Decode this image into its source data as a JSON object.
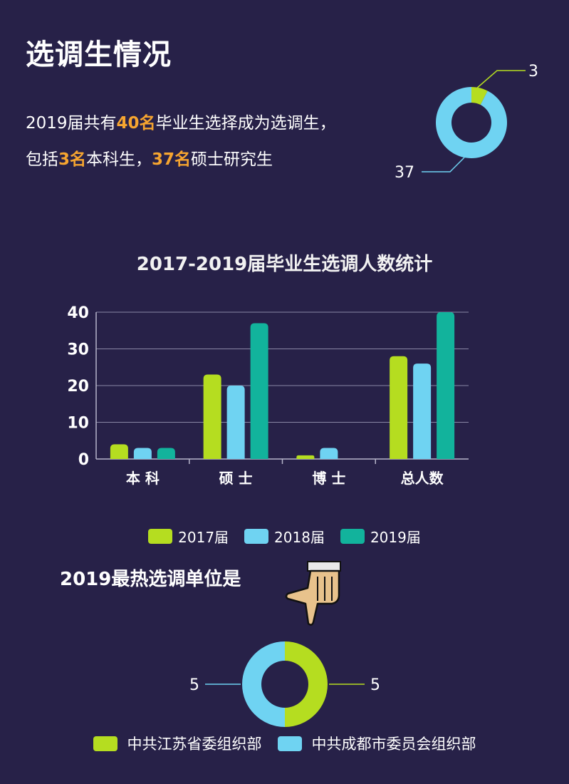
{
  "page": {
    "title": "选调生情况",
    "summary": {
      "line1": {
        "before": "2019届共有",
        "highlight": "40名",
        "after": "毕业生选择成为选调生，"
      },
      "line2": {
        "before": "包括",
        "highlight1": "3名",
        "middle": "本科生，",
        "highlight2": "37名",
        "after": "硕士研究生"
      }
    },
    "section2_heading": "2019最热选调单位是"
  },
  "chart_data": [
    {
      "type": "pie",
      "subtype": "donut",
      "values": [
        3,
        37
      ],
      "value_labels": [
        "3",
        "37"
      ],
      "colors": [
        "#b5dd20",
        "#6fd3f2"
      ]
    },
    {
      "type": "bar",
      "title": "2017-2019届毕业生选调人数统计",
      "categories": [
        "本 科",
        "硕 士",
        "博 士",
        "总人数"
      ],
      "series": [
        {
          "name": "2017届",
          "values": [
            4,
            23,
            1,
            28
          ],
          "color": "#b5dd20"
        },
        {
          "name": "2018届",
          "values": [
            3,
            20,
            3,
            26
          ],
          "color": "#6fd3f2"
        },
        {
          "name": "2019届",
          "values": [
            3,
            37,
            0,
            40
          ],
          "color": "#12b39c"
        }
      ],
      "ylim": [
        0,
        40
      ],
      "yticks": [
        "0",
        "10",
        "20",
        "30",
        "40"
      ],
      "grid": true,
      "legend": "bottom"
    },
    {
      "type": "pie",
      "subtype": "donut",
      "values": [
        5,
        5
      ],
      "value_labels": [
        "5",
        "5"
      ],
      "series_names": [
        "中共江苏省委组织部",
        "中共成都市委员会组织部"
      ],
      "colors": [
        "#b5dd20",
        "#6fd3f2"
      ],
      "legend": "bottom"
    }
  ]
}
